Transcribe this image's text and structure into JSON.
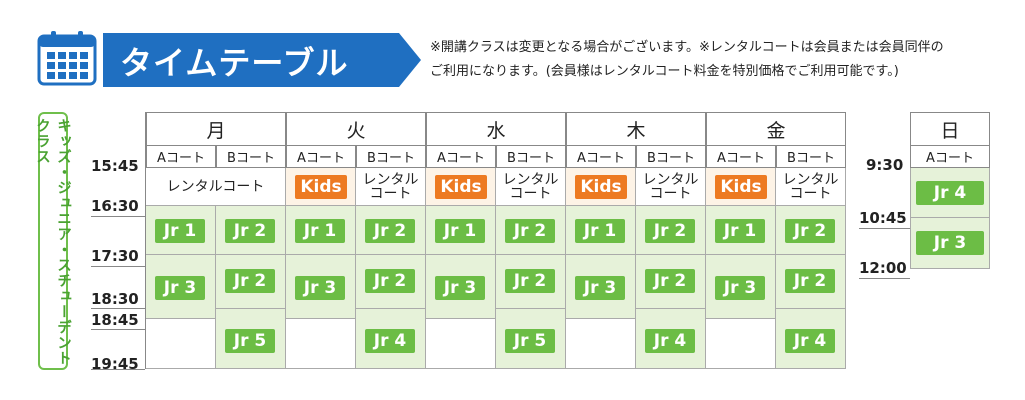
{
  "header": {
    "title": "タイムテーブル",
    "note_line1": "※開講クラスは変更となる場合がございます。※レンタルコートは会員または会員同伴の",
    "note_line2": "ご利用になります。(会員様はレンタルコート料金を特別価格でご利用可能です。)"
  },
  "class_label": "キッズ・ジュニア・スチューデントクラス",
  "times": {
    "t1545": "15:45",
    "t1630": "16:30",
    "t1730": "17:30",
    "t1830": "18:30",
    "t1845": "18:45",
    "t1945": "19:45"
  },
  "days": [
    "月",
    "火",
    "水",
    "木",
    "金"
  ],
  "courts": {
    "a": "Aコート",
    "b": "Bコート"
  },
  "cells": {
    "rental_merged": "レンタルコート",
    "rental_l1": "レンタル",
    "rental_l2": "コート",
    "kids": "Kids"
  },
  "schedule": {
    "mon": {
      "a": [
        "Jr 1",
        "Jr 3"
      ],
      "b": [
        "Jr 2",
        "Jr 2",
        "Jr 5"
      ]
    },
    "tue": {
      "a": [
        "Jr 1",
        "Jr 3"
      ],
      "b": [
        "Jr 2",
        "Jr 2",
        "Jr 4"
      ]
    },
    "wed": {
      "a": [
        "Jr 1",
        "Jr 3"
      ],
      "b": [
        "Jr 2",
        "Jr 2",
        "Jr 5"
      ]
    },
    "thu": {
      "a": [
        "Jr 1",
        "Jr 3"
      ],
      "b": [
        "Jr 2",
        "Jr 2",
        "Jr 4"
      ]
    },
    "fri": {
      "a": [
        "Jr 1",
        "Jr 3"
      ],
      "b": [
        "Jr 2",
        "Jr 2",
        "Jr 4"
      ]
    }
  },
  "sunday": {
    "day": "日",
    "court": "Aコート",
    "times": [
      "9:30",
      "10:45",
      "12:00"
    ],
    "classes": [
      "Jr 4",
      "Jr 3"
    ]
  },
  "colors": {
    "banner": "#1f6fc1",
    "green_badge": "#6cbd45",
    "kids_badge": "#ed7a21",
    "green_cell": "#e6f2d9",
    "label_green": "#4aa232"
  }
}
